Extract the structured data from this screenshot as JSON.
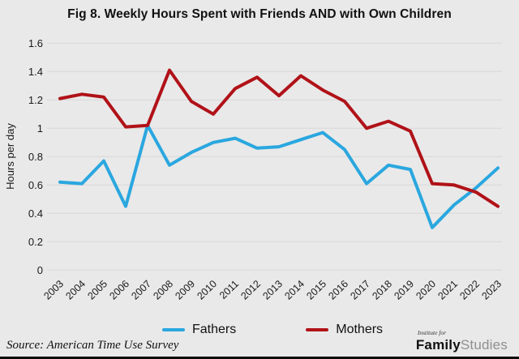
{
  "title": "Fig 8. Weekly Hours Spent with Friends AND with Own Children",
  "source": "Source: American Time Use Survey",
  "logo": {
    "top": "Institute for",
    "bold": "Family",
    "light": "Studies"
  },
  "colors": {
    "background": "#e9e9e9",
    "gridline": "#d8d8d8",
    "text": "#1a1a1a",
    "fathers": "#2aa7df",
    "mothers": "#b01218"
  },
  "chart_data": {
    "type": "line",
    "title": "Fig 8. Weekly Hours Spent with Friends AND with Own Children",
    "xlabel": "",
    "ylabel": "Hours per day",
    "ylim": [
      0,
      1.6
    ],
    "ytick_values": [
      0,
      0.2,
      0.4,
      0.6,
      0.8,
      1,
      1.2,
      1.4,
      1.6
    ],
    "ytick_labels": [
      "0",
      "0.2",
      "0.4",
      "0.6",
      "0.8",
      "1",
      "1.2",
      "1.4",
      "1.6"
    ],
    "grid": "horizontal",
    "legend_position": "bottom",
    "categories": [
      "2003",
      "2004",
      "2005",
      "2006",
      "2007",
      "2008",
      "2009",
      "2010",
      "2011",
      "2012",
      "2013",
      "2014",
      "2015",
      "2016",
      "2017",
      "2018",
      "2019",
      "2020",
      "2021",
      "2022",
      "2023"
    ],
    "series": [
      {
        "name": "Fathers",
        "color": "#2aa7df",
        "values": [
          0.62,
          0.61,
          0.77,
          0.45,
          1.02,
          0.74,
          0.83,
          0.9,
          0.93,
          0.86,
          0.87,
          0.92,
          0.97,
          0.85,
          0.61,
          0.74,
          0.71,
          0.3,
          0.46,
          0.58,
          0.72
        ]
      },
      {
        "name": "Mothers",
        "color": "#b01218",
        "values": [
          1.21,
          1.24,
          1.22,
          1.01,
          1.02,
          1.41,
          1.19,
          1.1,
          1.28,
          1.36,
          1.23,
          1.37,
          1.27,
          1.19,
          1.0,
          1.05,
          0.98,
          0.61,
          0.6,
          0.55,
          0.45
        ]
      }
    ]
  }
}
